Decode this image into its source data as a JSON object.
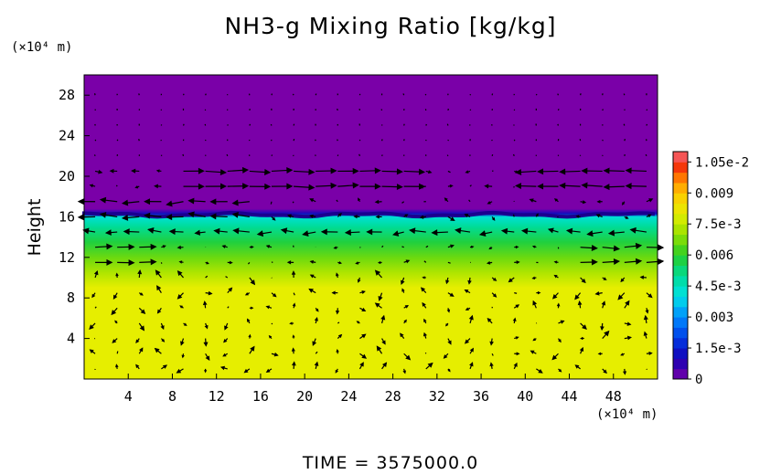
{
  "chart_data": {
    "type": "heatmap",
    "title": "NH3-g Mixing Ratio [kg/kg]",
    "ylabel": "Height",
    "x_unit": "(×10⁴ m)",
    "y_unit": "(×10⁴ m)",
    "xlim": [
      0,
      52
    ],
    "ylim": [
      0,
      30
    ],
    "x_ticks": [
      "4",
      "8",
      "12",
      "16",
      "20",
      "24",
      "28",
      "32",
      "36",
      "40",
      "44",
      "48"
    ],
    "y_ticks": [
      "4",
      "8",
      "12",
      "16",
      "20",
      "24",
      "28"
    ],
    "x_tick_values": [
      4,
      8,
      12,
      16,
      20,
      24,
      28,
      32,
      36,
      40,
      44,
      48
    ],
    "y_tick_values": [
      4,
      8,
      12,
      16,
      20,
      24,
      28
    ],
    "colorbar": {
      "range": [
        0,
        0.011
      ],
      "tick_labels": [
        "0",
        "1.5e-3",
        "0.003",
        "4.5e-3",
        "0.006",
        "7.5e-3",
        "0.009",
        "1.05e-2"
      ],
      "tick_values": [
        0,
        0.0015,
        0.003,
        0.0045,
        0.006,
        0.0075,
        0.009,
        0.0105
      ]
    },
    "profile": [
      {
        "height": 0,
        "value": 0.008
      },
      {
        "height": 9,
        "value": 0.008
      },
      {
        "height": 10.5,
        "value": 0.0073
      },
      {
        "height": 12,
        "value": 0.0066
      },
      {
        "height": 13.5,
        "value": 0.0058
      },
      {
        "height": 15,
        "value": 0.005
      },
      {
        "height": 16,
        "value": 0.0042
      },
      {
        "height": 16.3,
        "value": 0.0012
      },
      {
        "height": 16.8,
        "value": 0.0
      },
      {
        "height": 30,
        "value": 0.0
      }
    ],
    "wind_vectors": "qualitative field of flow arrows; strong horizontal flow near heights 11, 14, 16 and 19"
  },
  "footer": {
    "time_label": "TIME  =  3575000.0"
  },
  "colors": {
    "background": "#ffffff",
    "upper_layer": "#7a00a8",
    "lower_layer": "#e6ee00",
    "arrows": "#000000"
  }
}
